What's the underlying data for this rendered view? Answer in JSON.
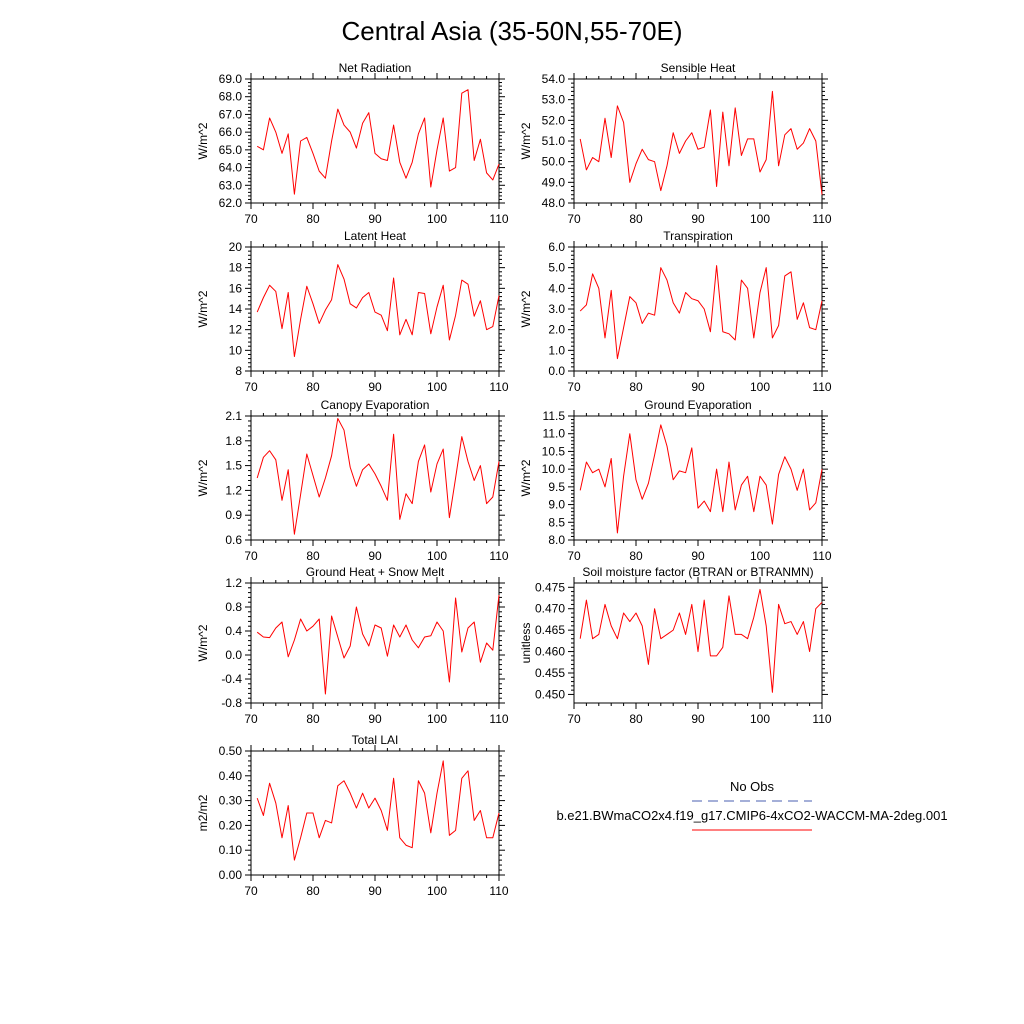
{
  "title": "Central Asia (35-50N,55-70E)",
  "chart_data": [
    {
      "type": "line",
      "title": "Net Radiation",
      "ylabel": "W/m^2",
      "xlim": [
        70,
        110
      ],
      "ylim": [
        62.0,
        69.0
      ],
      "xticks": [
        70,
        80,
        90,
        100,
        110
      ],
      "yticks": [
        "62.0",
        "63.0",
        "64.0",
        "65.0",
        "66.0",
        "67.0",
        "68.0",
        "69.0"
      ],
      "x_start": 71,
      "series": [
        {
          "color": "#ff0000",
          "values": [
            65.2,
            65.0,
            66.8,
            66.0,
            64.8,
            65.9,
            62.5,
            65.5,
            65.7,
            64.8,
            63.8,
            63.4,
            65.5,
            67.3,
            66.4,
            66.0,
            65.1,
            66.5,
            67.1,
            64.8,
            64.5,
            64.4,
            66.4,
            64.3,
            63.4,
            64.3,
            65.9,
            66.8,
            62.9,
            65.0,
            66.8,
            63.8,
            64.0,
            68.2,
            68.4,
            64.4,
            65.6,
            63.7,
            63.3,
            64.2
          ]
        }
      ]
    },
    {
      "type": "line",
      "title": "Sensible Heat",
      "ylabel": "W/m^2",
      "xlim": [
        70,
        110
      ],
      "ylim": [
        48.0,
        54.0
      ],
      "xticks": [
        70,
        80,
        90,
        100,
        110
      ],
      "yticks": [
        "48.0",
        "49.0",
        "50.0",
        "51.0",
        "52.0",
        "53.0",
        "54.0"
      ],
      "x_start": 71,
      "series": [
        {
          "color": "#ff0000",
          "values": [
            51.1,
            49.6,
            50.2,
            50.0,
            52.1,
            50.2,
            52.7,
            51.9,
            49.0,
            49.9,
            50.6,
            50.1,
            50.0,
            48.6,
            49.8,
            51.4,
            50.4,
            51.0,
            51.4,
            50.6,
            50.7,
            52.5,
            48.8,
            52.4,
            49.8,
            52.6,
            50.3,
            51.1,
            51.1,
            49.5,
            50.1,
            53.4,
            49.8,
            51.3,
            51.6,
            50.6,
            50.9,
            51.6,
            51.0,
            48.4
          ]
        }
      ]
    },
    {
      "type": "line",
      "title": "Latent Heat",
      "ylabel": "W/m^2",
      "xlim": [
        70,
        110
      ],
      "ylim": [
        8,
        20
      ],
      "xticks": [
        70,
        80,
        90,
        100,
        110
      ],
      "yticks": [
        "8",
        "10",
        "12",
        "14",
        "16",
        "18",
        "20"
      ],
      "x_start": 71,
      "series": [
        {
          "color": "#ff0000",
          "values": [
            13.7,
            15.1,
            16.3,
            15.7,
            12.1,
            15.6,
            9.4,
            13.0,
            16.2,
            14.5,
            12.6,
            13.9,
            14.9,
            18.3,
            16.9,
            14.5,
            14.1,
            15.1,
            15.6,
            13.7,
            13.4,
            11.9,
            17.0,
            11.5,
            13.0,
            11.5,
            15.6,
            15.5,
            11.6,
            14.2,
            16.3,
            11.0,
            13.4,
            16.8,
            16.4,
            13.3,
            14.8,
            12.0,
            12.3,
            15.3
          ]
        }
      ]
    },
    {
      "type": "line",
      "title": "Transpiration",
      "ylabel": "W/m^2",
      "xlim": [
        70,
        110
      ],
      "ylim": [
        0.0,
        6.0
      ],
      "xticks": [
        70,
        80,
        90,
        100,
        110
      ],
      "yticks": [
        "0.0",
        "1.0",
        "2.0",
        "3.0",
        "4.0",
        "5.0",
        "6.0"
      ],
      "x_start": 71,
      "series": [
        {
          "color": "#ff0000",
          "values": [
            2.9,
            3.2,
            4.7,
            4.0,
            1.6,
            3.9,
            0.6,
            2.1,
            3.6,
            3.3,
            2.3,
            2.8,
            2.7,
            5.0,
            4.4,
            3.3,
            2.8,
            3.8,
            3.5,
            3.4,
            3.0,
            1.9,
            5.1,
            1.9,
            1.8,
            1.5,
            4.4,
            4.0,
            1.6,
            3.8,
            5.0,
            1.6,
            2.2,
            4.6,
            4.8,
            2.5,
            3.3,
            2.1,
            2.0,
            3.4
          ]
        }
      ]
    },
    {
      "type": "line",
      "title": "Canopy Evaporation",
      "ylabel": "W/m^2",
      "xlim": [
        70,
        110
      ],
      "ylim": [
        0.6,
        2.1
      ],
      "xticks": [
        70,
        80,
        90,
        100,
        110
      ],
      "yticks": [
        "0.6",
        "0.9",
        "1.2",
        "1.5",
        "1.8",
        "2.1"
      ],
      "x_start": 71,
      "series": [
        {
          "color": "#ff0000",
          "values": [
            1.35,
            1.6,
            1.68,
            1.57,
            1.08,
            1.45,
            0.67,
            1.15,
            1.64,
            1.38,
            1.12,
            1.35,
            1.62,
            2.07,
            1.93,
            1.48,
            1.25,
            1.45,
            1.52,
            1.4,
            1.25,
            1.08,
            1.88,
            0.85,
            1.16,
            1.04,
            1.55,
            1.75,
            1.18,
            1.52,
            1.7,
            0.87,
            1.35,
            1.85,
            1.55,
            1.32,
            1.5,
            1.04,
            1.12,
            1.55
          ]
        }
      ]
    },
    {
      "type": "line",
      "title": "Ground Evaporation",
      "ylabel": "W/m^2",
      "xlim": [
        70,
        110
      ],
      "ylim": [
        8.0,
        11.5
      ],
      "xticks": [
        70,
        80,
        90,
        100,
        110
      ],
      "yticks": [
        "8.0",
        "8.5",
        "9.0",
        "9.5",
        "10.0",
        "10.5",
        "11.0",
        "11.5"
      ],
      "x_start": 71,
      "series": [
        {
          "color": "#ff0000",
          "values": [
            9.4,
            10.2,
            9.9,
            10.0,
            9.5,
            10.3,
            8.2,
            9.8,
            11.0,
            9.7,
            9.15,
            9.6,
            10.4,
            11.25,
            10.65,
            9.7,
            9.95,
            9.9,
            10.6,
            8.9,
            9.1,
            8.8,
            10.0,
            8.8,
            10.2,
            8.85,
            9.55,
            9.8,
            8.8,
            9.8,
            9.55,
            8.45,
            9.85,
            10.35,
            10.0,
            9.4,
            10.0,
            8.85,
            9.05,
            10.0
          ]
        }
      ]
    },
    {
      "type": "line",
      "title": "Ground Heat + Snow Melt",
      "ylabel": "W/m^2",
      "xlim": [
        70,
        110
      ],
      "ylim": [
        -0.8,
        1.2
      ],
      "xticks": [
        70,
        80,
        90,
        100,
        110
      ],
      "yticks": [
        "-0.8",
        "-0.4",
        "0.0",
        "0.4",
        "0.8",
        "1.2"
      ],
      "x_start": 71,
      "series": [
        {
          "color": "#ff0000",
          "values": [
            0.38,
            0.3,
            0.29,
            0.45,
            0.55,
            -0.03,
            0.25,
            0.6,
            0.4,
            0.48,
            0.6,
            -0.65,
            0.65,
            0.3,
            -0.05,
            0.15,
            0.8,
            0.35,
            0.15,
            0.5,
            0.45,
            -0.02,
            0.5,
            0.3,
            0.5,
            0.25,
            0.12,
            0.3,
            0.32,
            0.55,
            0.4,
            -0.45,
            0.95,
            0.05,
            0.45,
            0.55,
            -0.12,
            0.2,
            0.08,
            1.0
          ]
        }
      ]
    },
    {
      "type": "line",
      "title": "Soil moisture factor (BTRAN or BTRANMN)",
      "ylabel": "unitless",
      "xlim": [
        70,
        110
      ],
      "ylim": [
        0.448,
        0.476
      ],
      "xticks": [
        70,
        80,
        90,
        100,
        110
      ],
      "yticks": [
        "0.450",
        "0.455",
        "0.460",
        "0.465",
        "0.470",
        "0.475"
      ],
      "x_start": 71,
      "series": [
        {
          "color": "#ff0000",
          "values": [
            0.463,
            0.472,
            0.463,
            0.464,
            0.471,
            0.466,
            0.463,
            0.469,
            0.467,
            0.469,
            0.466,
            0.457,
            0.47,
            0.463,
            0.464,
            0.465,
            0.469,
            0.464,
            0.471,
            0.46,
            0.472,
            0.459,
            0.459,
            0.461,
            0.473,
            0.464,
            0.464,
            0.463,
            0.468,
            0.4745,
            0.466,
            0.4505,
            0.471,
            0.4665,
            0.467,
            0.464,
            0.467,
            0.46,
            0.47,
            0.4715
          ]
        }
      ]
    },
    {
      "type": "line",
      "title": "Total LAI",
      "ylabel": "m2/m2",
      "xlim": [
        70,
        110
      ],
      "ylim": [
        0.0,
        0.5
      ],
      "xticks": [
        70,
        80,
        90,
        100,
        110
      ],
      "yticks": [
        "0.00",
        "0.10",
        "0.20",
        "0.30",
        "0.40",
        "0.50"
      ],
      "x_start": 71,
      "series": [
        {
          "color": "#ff0000",
          "values": [
            0.31,
            0.24,
            0.37,
            0.29,
            0.15,
            0.28,
            0.06,
            0.15,
            0.25,
            0.25,
            0.15,
            0.22,
            0.21,
            0.36,
            0.38,
            0.33,
            0.27,
            0.33,
            0.27,
            0.31,
            0.26,
            0.18,
            0.39,
            0.15,
            0.12,
            0.11,
            0.38,
            0.33,
            0.17,
            0.33,
            0.46,
            0.16,
            0.18,
            0.39,
            0.42,
            0.22,
            0.26,
            0.15,
            0.15,
            0.25
          ]
        }
      ]
    }
  ],
  "legend": {
    "entries": [
      {
        "label": "No Obs",
        "color": "#4a5fb0",
        "style": "dashed"
      },
      {
        "label": "b.e21.BWmaCO2x4.f19_g17.CMIP6-4xCO2-WACCM-MA-2deg.001",
        "color": "#ff0000",
        "style": "solid"
      }
    ]
  }
}
